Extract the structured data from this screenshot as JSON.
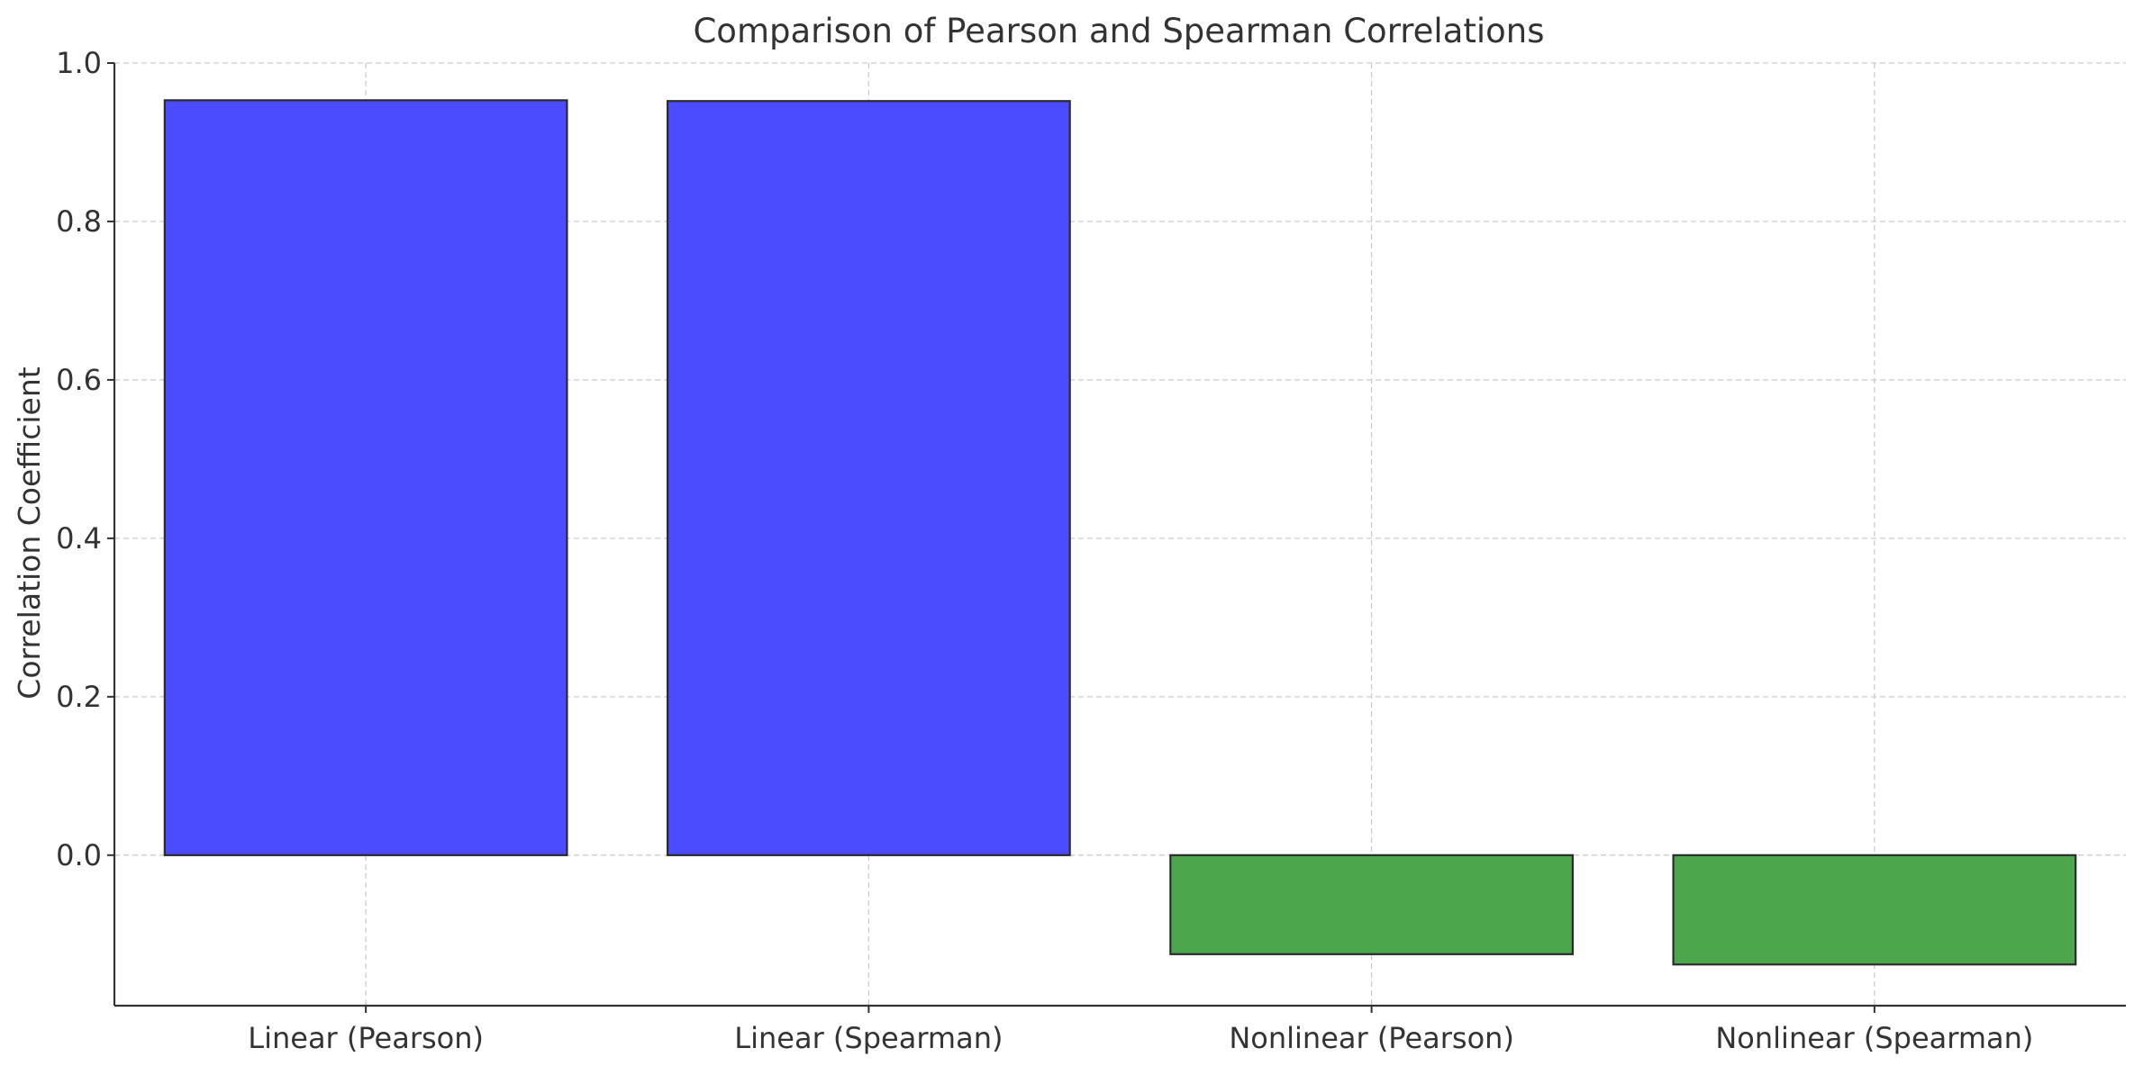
{
  "chart_data": {
    "type": "bar",
    "title": "Comparison of Pearson and Spearman Correlations",
    "xlabel": "",
    "ylabel": "Correlation Coefficient",
    "categories": [
      "Linear (Pearson)",
      "Linear (Spearman)",
      "Nonlinear (Pearson)",
      "Nonlinear (Spearman)"
    ],
    "values": [
      0.953,
      0.952,
      -0.125,
      -0.138
    ],
    "bar_colors": [
      "#4B4BFF",
      "#4B4BFF",
      "#4CA64C",
      "#4CA64C"
    ],
    "bar_edge_color": "#2b2b2b",
    "ylim": [
      -0.19,
      1.0
    ],
    "yticks": [
      0.0,
      0.2,
      0.4,
      0.6,
      0.8,
      1.0
    ],
    "ytick_labels": [
      "0.0",
      "0.2",
      "0.4",
      "0.6",
      "0.8",
      "1.0"
    ],
    "grid": true,
    "grid_color": "#cccccc"
  }
}
